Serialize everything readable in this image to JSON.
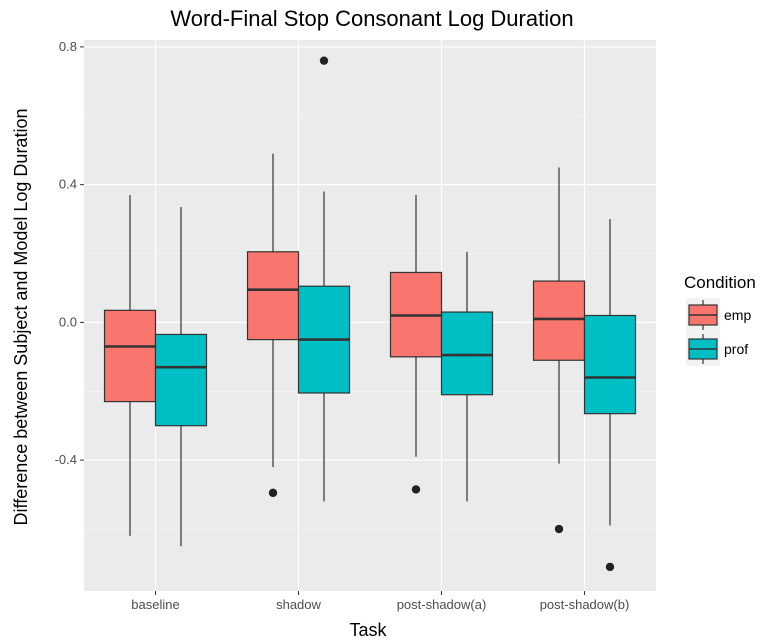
{
  "chart_data": {
    "type": "boxplot",
    "title": "Word-Final Stop Consonant Log Duration",
    "xlabel": "Task",
    "ylabel": "Difference between Subject and Model Log Duration",
    "categories": [
      "baseline",
      "shadow",
      "post-shadow(a)",
      "post-shadow(b)"
    ],
    "yticks": [
      "0.8",
      "0.4",
      "0.0",
      "-0.4"
    ],
    "ytick_values": [
      0.8,
      0.4,
      0.0,
      -0.4
    ],
    "ylim": [
      -0.78,
      0.82
    ],
    "grid": true,
    "legend": {
      "title": "Condition",
      "placement": "right"
    },
    "series": [
      {
        "name": "emp",
        "color": "#F8766D",
        "boxes": [
          {
            "category": "baseline",
            "whisker_low": -0.62,
            "q1": -0.23,
            "median": -0.07,
            "q3": 0.035,
            "whisker_high": 0.37,
            "outliers": []
          },
          {
            "category": "shadow",
            "whisker_low": -0.42,
            "q1": -0.05,
            "median": 0.095,
            "q3": 0.205,
            "whisker_high": 0.49,
            "outliers": [
              -0.495
            ]
          },
          {
            "category": "post-shadow(a)",
            "whisker_low": -0.39,
            "q1": -0.1,
            "median": 0.02,
            "q3": 0.145,
            "whisker_high": 0.37,
            "outliers": [
              -0.485
            ]
          },
          {
            "category": "post-shadow(b)",
            "whisker_low": -0.41,
            "q1": -0.11,
            "median": 0.01,
            "q3": 0.12,
            "whisker_high": 0.45,
            "outliers": [
              -0.6
            ]
          }
        ]
      },
      {
        "name": "prof",
        "color": "#00BFC4",
        "boxes": [
          {
            "category": "baseline",
            "whisker_low": -0.65,
            "q1": -0.3,
            "median": -0.13,
            "q3": -0.035,
            "whisker_high": 0.335,
            "outliers": []
          },
          {
            "category": "shadow",
            "whisker_low": -0.52,
            "q1": -0.205,
            "median": -0.05,
            "q3": 0.105,
            "whisker_high": 0.38,
            "outliers": [
              0.76
            ]
          },
          {
            "category": "post-shadow(a)",
            "whisker_low": -0.52,
            "q1": -0.21,
            "median": -0.095,
            "q3": 0.03,
            "whisker_high": 0.205,
            "outliers": []
          },
          {
            "category": "post-shadow(b)",
            "whisker_low": -0.59,
            "q1": -0.265,
            "median": -0.16,
            "q3": 0.02,
            "whisker_high": 0.3,
            "outliers": [
              -0.71
            ]
          }
        ]
      }
    ]
  }
}
